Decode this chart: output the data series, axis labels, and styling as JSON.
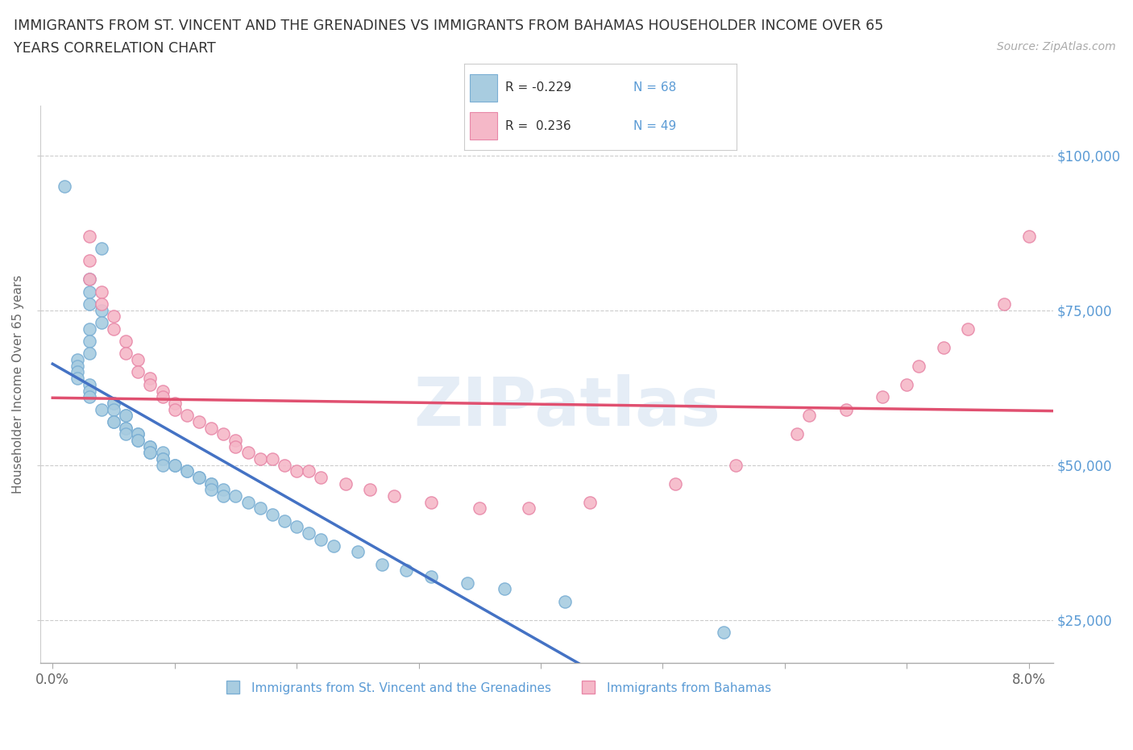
{
  "title_line1": "IMMIGRANTS FROM ST. VINCENT AND THE GRENADINES VS IMMIGRANTS FROM BAHAMAS HOUSEHOLDER INCOME OVER 65",
  "title_line2": "YEARS CORRELATION CHART",
  "source_text": "Source: ZipAtlas.com",
  "ylabel": "Householder Income Over 65 years",
  "xlim": [
    -0.001,
    0.082
  ],
  "ylim": [
    18000,
    108000
  ],
  "yticks_right": [
    25000,
    50000,
    75000,
    100000
  ],
  "ytick_labels_right": [
    "$25,000",
    "$50,000",
    "$75,000",
    "$100,000"
  ],
  "r1": -0.229,
  "n1": 68,
  "r2": 0.236,
  "n2": 49,
  "color_blue": "#a8cce0",
  "color_blue_edge": "#7bafd4",
  "color_pink": "#f5b8c8",
  "color_pink_edge": "#e888a8",
  "color_trend_blue_solid": "#4472C4",
  "color_trend_blue_dash": "#9ec4e8",
  "color_trend_pink": "#e05070",
  "background_color": "#ffffff",
  "watermark_text": "ZIPatlas",
  "legend_label_color": "#333333",
  "axis_label_color": "#5B9BD5",
  "blue_x": [
    0.001,
    0.004,
    0.003,
    0.003,
    0.003,
    0.004,
    0.004,
    0.003,
    0.003,
    0.003,
    0.002,
    0.002,
    0.002,
    0.002,
    0.003,
    0.003,
    0.003,
    0.005,
    0.005,
    0.004,
    0.005,
    0.006,
    0.006,
    0.005,
    0.005,
    0.006,
    0.006,
    0.006,
    0.007,
    0.007,
    0.007,
    0.007,
    0.008,
    0.008,
    0.008,
    0.008,
    0.009,
    0.009,
    0.009,
    0.009,
    0.01,
    0.01,
    0.011,
    0.011,
    0.012,
    0.012,
    0.013,
    0.013,
    0.013,
    0.014,
    0.014,
    0.015,
    0.016,
    0.017,
    0.018,
    0.019,
    0.02,
    0.021,
    0.022,
    0.023,
    0.025,
    0.027,
    0.029,
    0.031,
    0.034,
    0.037,
    0.042,
    0.055
  ],
  "blue_y": [
    95000,
    85000,
    80000,
    78000,
    76000,
    75000,
    73000,
    72000,
    70000,
    68000,
    67000,
    66000,
    65000,
    64000,
    63000,
    62000,
    61000,
    60000,
    60000,
    59000,
    59000,
    58000,
    58000,
    57000,
    57000,
    56000,
    56000,
    55000,
    55000,
    55000,
    54000,
    54000,
    53000,
    53000,
    52000,
    52000,
    52000,
    51000,
    51000,
    50000,
    50000,
    50000,
    49000,
    49000,
    48000,
    48000,
    47000,
    47000,
    46000,
    46000,
    45000,
    45000,
    44000,
    43000,
    42000,
    41000,
    40000,
    39000,
    38000,
    37000,
    36000,
    34000,
    33000,
    32000,
    31000,
    30000,
    28000,
    23000
  ],
  "pink_x": [
    0.003,
    0.003,
    0.003,
    0.004,
    0.004,
    0.005,
    0.005,
    0.006,
    0.006,
    0.007,
    0.007,
    0.008,
    0.008,
    0.009,
    0.009,
    0.01,
    0.01,
    0.011,
    0.012,
    0.013,
    0.014,
    0.015,
    0.015,
    0.016,
    0.017,
    0.018,
    0.019,
    0.02,
    0.021,
    0.022,
    0.024,
    0.026,
    0.028,
    0.031,
    0.035,
    0.039,
    0.044,
    0.051,
    0.056,
    0.061,
    0.062,
    0.065,
    0.068,
    0.07,
    0.071,
    0.073,
    0.075,
    0.078,
    0.08
  ],
  "pink_y": [
    87000,
    83000,
    80000,
    78000,
    76000,
    74000,
    72000,
    70000,
    68000,
    67000,
    65000,
    64000,
    63000,
    62000,
    61000,
    60000,
    59000,
    58000,
    57000,
    56000,
    55000,
    54000,
    53000,
    52000,
    51000,
    51000,
    50000,
    49000,
    49000,
    48000,
    47000,
    46000,
    45000,
    44000,
    43000,
    43000,
    44000,
    47000,
    50000,
    55000,
    58000,
    59000,
    61000,
    63000,
    66000,
    69000,
    72000,
    76000,
    87000
  ],
  "blue_trend_x_solid_end": 0.048,
  "xtick_positions": [
    0.0,
    0.01,
    0.02,
    0.03,
    0.04,
    0.05,
    0.06,
    0.07,
    0.08
  ]
}
